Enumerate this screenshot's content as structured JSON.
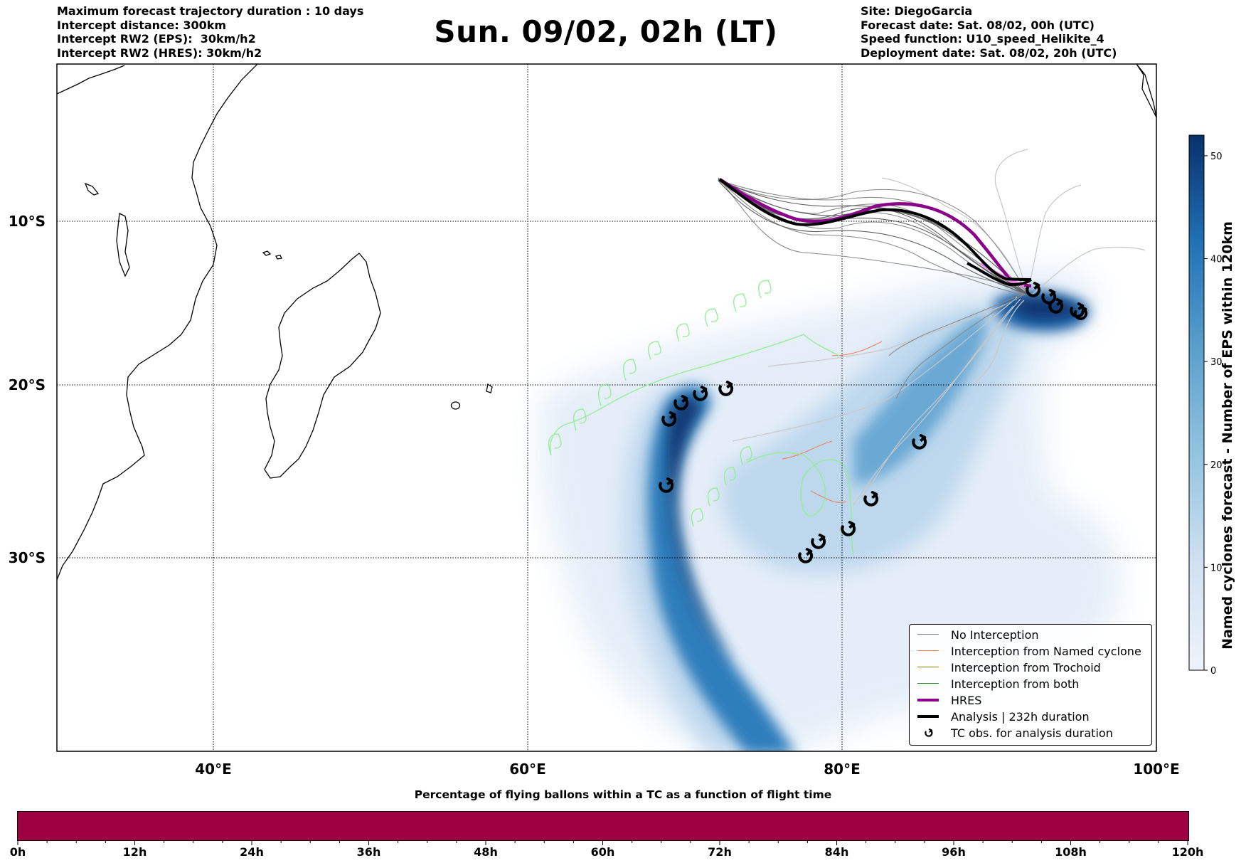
{
  "header": {
    "left_lines": [
      "Maximum forecast trajectory duration : 10 days",
      "Intercept distance: 300km",
      "Intercept RW2 (EPS):  30km/h2",
      "Intercept RW2 (HRES): 30km/h2"
    ],
    "title": "Sun. 09/02, 02h (LT)",
    "right_lines": [
      "Site: DiegoGarcia",
      "Forecast date: Sat. 08/02, 00h (UTC)",
      "Speed function: U10_speed_Helikite_4",
      "Deployment date: Sat. 08/02, 20h (UTC)"
    ]
  },
  "map": {
    "lon_ticks": [
      "40°E",
      "60°E",
      "80°E",
      "100°E"
    ],
    "lat_ticks": [
      "10°S",
      "20°S",
      "30°S"
    ],
    "extent": {
      "lon_min": 30,
      "lon_max": 100,
      "lat_top": -0.5,
      "lat_bottom": -42.4
    },
    "colors": {
      "eps_tracks": "#6e6e6e",
      "eps_tracks_light": "#c8c8c8",
      "hres": "#8b008b",
      "analysis": "#000000",
      "trochoid": "#90ee90",
      "named_cyclone": "#f08060"
    }
  },
  "legend": {
    "items": [
      {
        "label": "No Interception",
        "color": "#808080",
        "style": "thin"
      },
      {
        "label": "Interception from Named cyclone",
        "color": "#ff7f50",
        "style": "thin"
      },
      {
        "label": "Interception from Trochoid",
        "color": "#808000",
        "style": "thin"
      },
      {
        "label": "Interception from both",
        "color": "#228b22",
        "style": "thin"
      },
      {
        "label": "HRES",
        "color": "#8b008b",
        "style": "thick"
      },
      {
        "label": "Analysis | 232h duration",
        "color": "#000000",
        "style": "thick"
      },
      {
        "label": "TC obs. for analysis duration",
        "color": "#000000",
        "style": "symbol"
      }
    ]
  },
  "colorbar": {
    "label": "Named cyclones forecast - Number of EPS within 120km",
    "ticks": [
      "0",
      "10",
      "20",
      "30",
      "40",
      "50"
    ],
    "max": 52,
    "color_low": "#eef3fa",
    "color_high": "#08306b"
  },
  "flight_bar": {
    "title": "Percentage of flying ballons within a TC as a function of flight time",
    "ticks": [
      "0h",
      "12h",
      "24h",
      "36h",
      "48h",
      "60h",
      "72h",
      "84h",
      "96h",
      "108h",
      "120h"
    ],
    "fill_color": "#9e0142"
  }
}
